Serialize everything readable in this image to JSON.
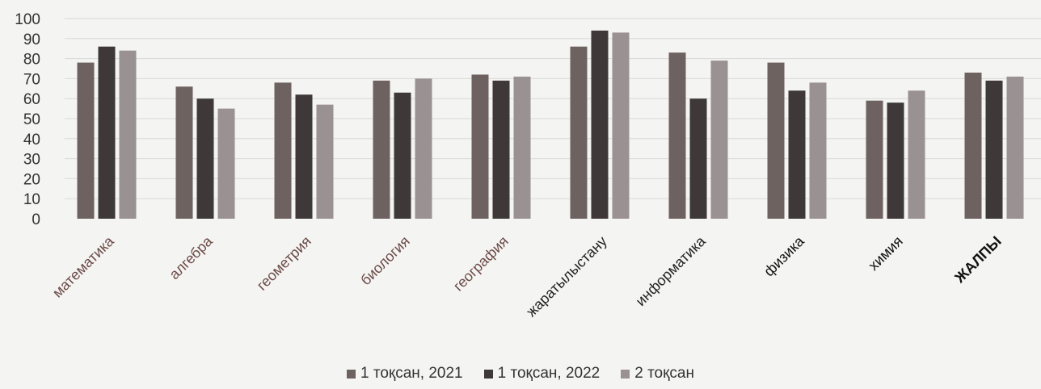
{
  "chart_data": {
    "type": "bar",
    "title": "",
    "xlabel": "",
    "ylabel": "",
    "ylim": [
      0,
      100
    ],
    "yticks": [
      0,
      10,
      20,
      30,
      40,
      50,
      60,
      70,
      80,
      90,
      100
    ],
    "grid": true,
    "legend_position": "bottom",
    "categories": [
      "математика",
      "алгебра",
      "геометрия",
      "биология",
      "география",
      "жаратылыстану",
      "информатика",
      "физика",
      "химия",
      "ЖАЛПЫ"
    ],
    "series": [
      {
        "name": "1 тоқсан, 2021",
        "color": "#6e6260",
        "values": [
          78,
          66,
          68,
          69,
          72,
          86,
          83,
          78,
          59,
          73
        ]
      },
      {
        "name": "1 тоқсан, 2022",
        "color": "#3e3838",
        "values": [
          86,
          60,
          62,
          63,
          69,
          94,
          60,
          64,
          58,
          69
        ]
      },
      {
        "name": "2 тоқсан",
        "color": "#9a9292",
        "values": [
          84,
          55,
          57,
          70,
          71,
          93,
          79,
          68,
          64,
          71
        ]
      }
    ]
  }
}
